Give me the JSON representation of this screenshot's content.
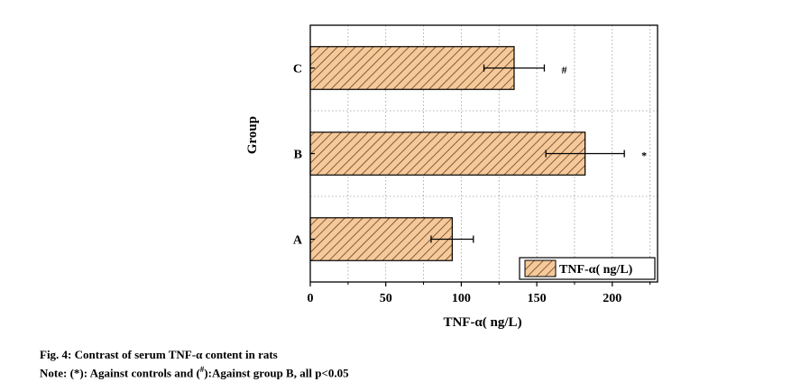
{
  "chart_data": {
    "type": "bar",
    "orientation": "horizontal",
    "categories": [
      "A",
      "B",
      "C"
    ],
    "series": [
      {
        "name": "TNF-α( ng/L)",
        "values": [
          94,
          182,
          135
        ],
        "errors": [
          14,
          26,
          20
        ],
        "color": "#f5c99a",
        "hatch_color": "#6b4020",
        "pattern": "diagonal-hatch"
      }
    ],
    "significance": [
      "",
      "*",
      "#"
    ],
    "xlabel": "TNF-α( ng/L)",
    "ylabel": "Group",
    "xlim": [
      0,
      230
    ],
    "xticks": [
      0,
      50,
      100,
      150,
      200
    ],
    "grid": "dotted",
    "legend_position": "bottom-right"
  },
  "caption": {
    "title": "Fig. 4: Contrast of serum TNF-α content in rats",
    "note_pre": "Note: (*): Against controls and (",
    "note_sup": "#",
    "note_post": "):Against group B, all p<0.05"
  }
}
